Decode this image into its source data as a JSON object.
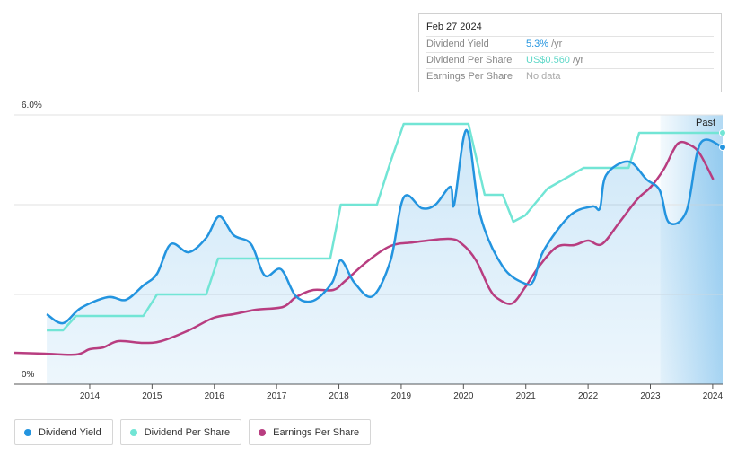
{
  "chart_data": {
    "type": "line",
    "yticks": [
      {
        "value": 0,
        "label": "0%"
      },
      {
        "value": 2,
        "label": null
      },
      {
        "value": 4,
        "label": null
      },
      {
        "value": 6,
        "label": "6.0%"
      }
    ],
    "ylim": [
      0,
      6
    ],
    "xlim": [
      2012.79,
      2024.16
    ],
    "xticks": [
      2014,
      2015,
      2016,
      2017,
      2018,
      2019,
      2020,
      2021,
      2022,
      2023,
      2024
    ],
    "grid": true,
    "annotation": {
      "label": "Past",
      "x_start": 2023.16
    },
    "series": [
      {
        "name": "Dividend Yield",
        "color": "#2394df",
        "area": true,
        "x": [
          2013.31,
          2013.57,
          2013.86,
          2014.29,
          2014.58,
          2014.86,
          2015.08,
          2015.3,
          2015.59,
          2015.87,
          2016.08,
          2016.31,
          2016.59,
          2016.81,
          2017.07,
          2017.31,
          2017.59,
          2017.89,
          2018.03,
          2018.25,
          2018.54,
          2018.83,
          2019.04,
          2019.33,
          2019.55,
          2019.79,
          2019.85,
          2020.05,
          2020.27,
          2020.63,
          2020.99,
          2021.13,
          2021.28,
          2021.71,
          2022.07,
          2022.19,
          2022.29,
          2022.65,
          2022.94,
          2023.15,
          2023.3,
          2023.58,
          2023.8,
          2024.16
        ],
        "values": [
          1.56,
          1.36,
          1.7,
          1.94,
          1.88,
          2.2,
          2.46,
          3.12,
          2.94,
          3.26,
          3.74,
          3.32,
          3.12,
          2.42,
          2.56,
          1.96,
          1.86,
          2.26,
          2.76,
          2.26,
          1.96,
          2.76,
          4.16,
          3.92,
          4.0,
          4.4,
          4.0,
          5.66,
          3.76,
          2.62,
          2.24,
          2.32,
          2.96,
          3.76,
          3.96,
          3.92,
          4.66,
          4.96,
          4.56,
          4.32,
          3.6,
          3.86,
          5.36,
          5.28
        ]
      },
      {
        "name": "Dividend Per Share",
        "color": "#72e5d5",
        "area": false,
        "x": [
          2013.31,
          2013.57,
          2013.78,
          2014.86,
          2015.08,
          2015.87,
          2016.06,
          2017.86,
          2018.03,
          2018.61,
          2018.83,
          2019.04,
          2020.08,
          2020.34,
          2020.63,
          2020.8,
          2020.99,
          2021.35,
          2021.93,
          2022.65,
          2022.82,
          2024.16
        ],
        "values": [
          1.2,
          1.2,
          1.52,
          1.52,
          2.0,
          2.0,
          2.8,
          2.8,
          4.0,
          4.0,
          4.96,
          5.8,
          5.8,
          4.22,
          4.22,
          3.62,
          3.76,
          4.36,
          4.82,
          4.82,
          5.6,
          5.6
        ]
      },
      {
        "name": "Earnings Per Share",
        "color": "#b83d80",
        "area": false,
        "x": [
          2012.79,
          2013.28,
          2013.78,
          2014.0,
          2014.22,
          2014.46,
          2014.86,
          2015.15,
          2015.59,
          2015.99,
          2016.31,
          2016.67,
          2017.1,
          2017.31,
          2017.59,
          2017.91,
          2018.1,
          2018.46,
          2018.83,
          2019.19,
          2019.76,
          2019.98,
          2020.2,
          2020.42,
          2020.56,
          2020.78,
          2020.99,
          2021.21,
          2021.5,
          2021.78,
          2022.0,
          2022.22,
          2022.5,
          2022.79,
          2023.01,
          2023.22,
          2023.44,
          2023.65,
          2023.8,
          2024.01
        ],
        "values": [
          0.7,
          0.68,
          0.66,
          0.78,
          0.82,
          0.96,
          0.92,
          0.96,
          1.2,
          1.48,
          1.56,
          1.66,
          1.72,
          1.94,
          2.1,
          2.1,
          2.3,
          2.74,
          3.08,
          3.16,
          3.24,
          3.12,
          2.76,
          2.12,
          1.9,
          1.8,
          2.16,
          2.62,
          3.06,
          3.1,
          3.2,
          3.12,
          3.6,
          4.12,
          4.4,
          4.8,
          5.36,
          5.32,
          5.12,
          4.56
        ]
      }
    ]
  },
  "tooltip": {
    "date": "Feb 27 2024",
    "rows": [
      {
        "label": "Dividend Yield",
        "value": "5.3%",
        "unit": "/yr"
      },
      {
        "label": "Dividend Per Share",
        "value": "US$0.560",
        "unit": "/yr"
      },
      {
        "label": "Earnings Per Share",
        "value": "No data"
      }
    ]
  }
}
